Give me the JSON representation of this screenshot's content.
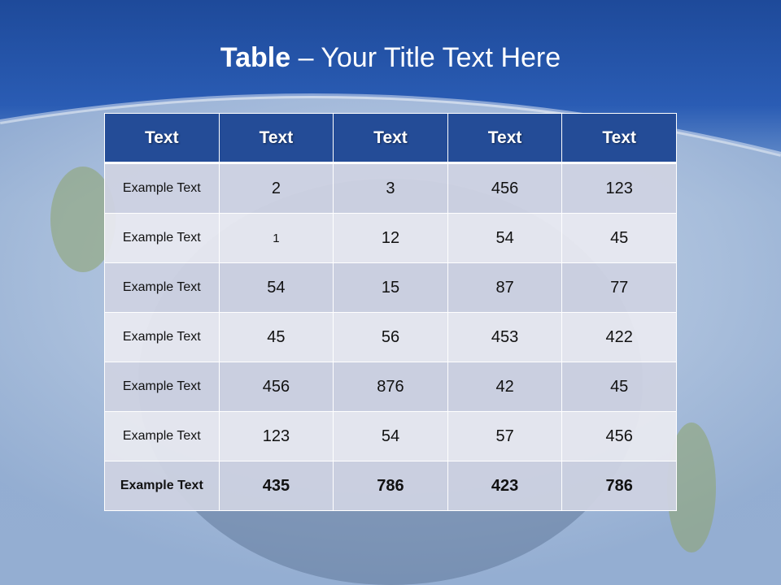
{
  "title": {
    "bold": "Table",
    "rest": " – Your Title Text Here"
  },
  "table": {
    "headers": [
      "Text",
      "Text",
      "Text",
      "Text",
      "Text"
    ],
    "rows": [
      [
        "Example Text",
        "2",
        "3",
        "456",
        "123"
      ],
      [
        "Example Text",
        "1",
        "12",
        "54",
        "45"
      ],
      [
        "Example Text",
        "54",
        "15",
        "87",
        "77"
      ],
      [
        "Example Text",
        "45",
        "56",
        "453",
        "422"
      ],
      [
        "Example Text",
        "456",
        "876",
        "42",
        "45"
      ],
      [
        "Example Text",
        "123",
        "54",
        "57",
        "456"
      ],
      [
        "Example Text",
        "435",
        "786",
        "423",
        "786"
      ]
    ]
  },
  "colors": {
    "header": "#244c97",
    "band_dark": "#cdd2e1",
    "band_light": "#e8e9f0",
    "title_bar": "#1e4a9a"
  }
}
